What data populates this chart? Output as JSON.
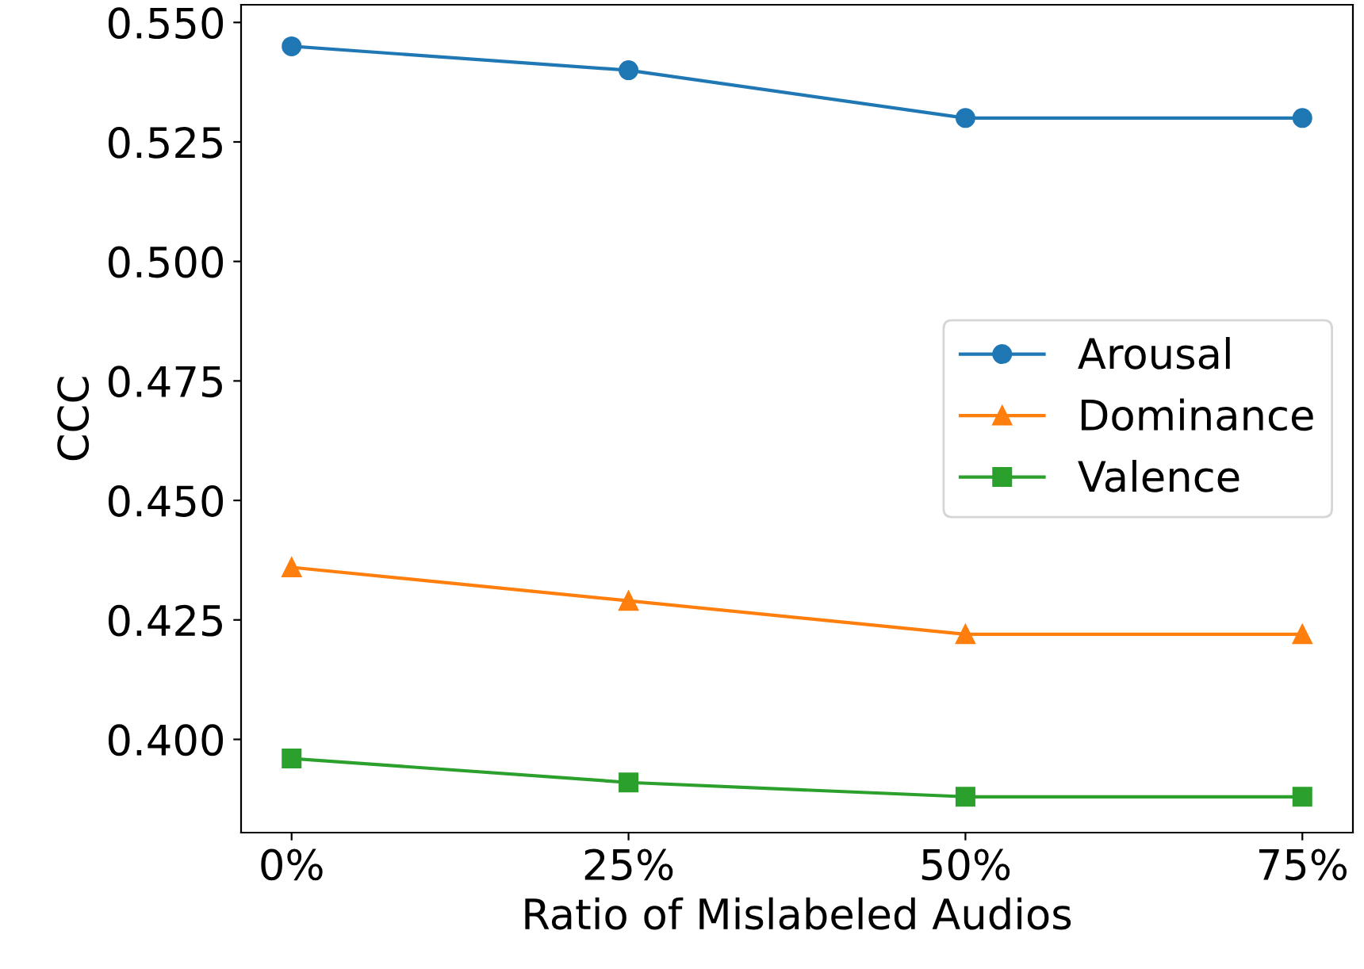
{
  "chart_data": {
    "type": "line",
    "xlabel": "Ratio of Mislabeled Audios",
    "ylabel": "CCC",
    "categories": [
      "0%",
      "25%",
      "50%",
      "75%"
    ],
    "series": [
      {
        "name": "Arousal",
        "color": "#1f77b4",
        "marker": "circle",
        "values": [
          0.545,
          0.54,
          0.53,
          0.53
        ]
      },
      {
        "name": "Dominance",
        "color": "#ff7f0e",
        "marker": "triangle",
        "values": [
          0.436,
          0.429,
          0.422,
          0.422
        ]
      },
      {
        "name": "Valence",
        "color": "#2ca02c",
        "marker": "square",
        "values": [
          0.396,
          0.391,
          0.388,
          0.388
        ]
      }
    ],
    "ylim": [
      0.3805,
      0.5537
    ],
    "yticks": [
      {
        "value": 0.4,
        "label": "0.400"
      },
      {
        "value": 0.425,
        "label": "0.425"
      },
      {
        "value": 0.45,
        "label": "0.450"
      },
      {
        "value": 0.475,
        "label": "0.475"
      },
      {
        "value": 0.5,
        "label": "0.500"
      },
      {
        "value": 0.525,
        "label": "0.525"
      },
      {
        "value": 0.55,
        "label": "0.550"
      }
    ],
    "grid": false,
    "legend": "center right",
    "line_style": "solid"
  }
}
